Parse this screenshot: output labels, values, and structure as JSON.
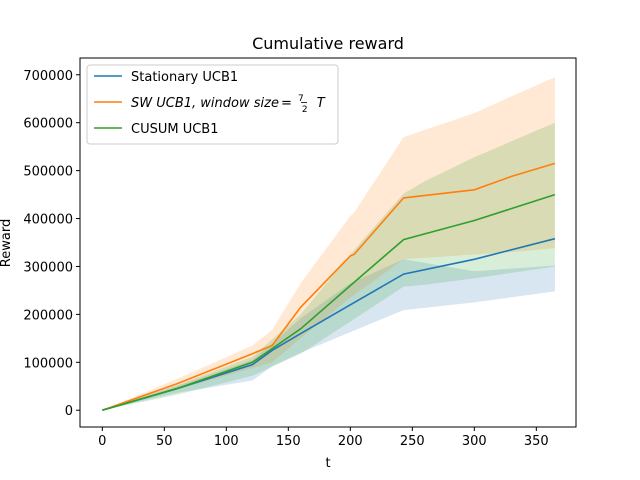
{
  "chart_data": {
    "type": "line",
    "title": "Cumulative reward",
    "xlabel": "t",
    "ylabel": "Reward",
    "xlim": [
      -18,
      382
    ],
    "ylim": [
      -35000,
      735000
    ],
    "x_ticks": [
      0,
      50,
      100,
      150,
      200,
      250,
      300,
      350
    ],
    "y_ticks": [
      0,
      100000,
      200000,
      300000,
      400000,
      500000,
      600000,
      700000
    ],
    "x_tick_labels": [
      "0",
      "50",
      "100",
      "150",
      "200",
      "250",
      "300",
      "350"
    ],
    "y_tick_labels": [
      "0",
      "100000",
      "200000",
      "300000",
      "400000",
      "500000",
      "600000",
      "700000"
    ],
    "grid": false,
    "legend": "top-left",
    "series": [
      {
        "name": "Stationary UCB1",
        "color": "#1f77b4",
        "x": [
          0,
          60,
          121,
          137,
          160,
          200,
          243,
          300,
          365
        ],
        "y": [
          0,
          45000,
          95000,
          125000,
          160000,
          220000,
          284000,
          315000,
          358000
        ],
        "lower": [
          0,
          36000,
          62000,
          92000,
          120000,
          163000,
          209000,
          225000,
          248000
        ],
        "upper": [
          0,
          50000,
          105000,
          139000,
          192000,
          265000,
          315000,
          290000,
          302000
        ]
      },
      {
        "name": "SW UCB1, window size = 7/2 T",
        "name_prefix": "SW UCB1, window size",
        "name_fraction_num": "7",
        "name_fraction_den": "2",
        "name_suffix": "T",
        "color": "#ff7f0e",
        "x": [
          0,
          60,
          121,
          137,
          160,
          200,
          203,
          243,
          300,
          330,
          365
        ],
        "y": [
          0,
          55000,
          118000,
          135000,
          215000,
          322000,
          325000,
          443000,
          460000,
          488000,
          515000
        ],
        "lower": [
          0,
          43000,
          88000,
          100000,
          150000,
          235000,
          240000,
          315000,
          325000,
          330000,
          338000
        ],
        "upper": [
          0,
          65000,
          135000,
          168000,
          265000,
          405000,
          412000,
          570000,
          620000,
          655000,
          695000
        ]
      },
      {
        "name": "CUSUM UCB1",
        "color": "#2ca02c",
        "x": [
          0,
          60,
          121,
          160,
          200,
          243,
          260,
          300,
          365
        ],
        "y": [
          0,
          45000,
          100000,
          170000,
          260000,
          356000,
          368000,
          396000,
          450000
        ],
        "lower": [
          0,
          32000,
          72000,
          118000,
          185000,
          258000,
          262000,
          275000,
          300000
        ],
        "upper": [
          0,
          52000,
          112000,
          200000,
          325000,
          452000,
          478000,
          528000,
          600000
        ]
      }
    ]
  }
}
